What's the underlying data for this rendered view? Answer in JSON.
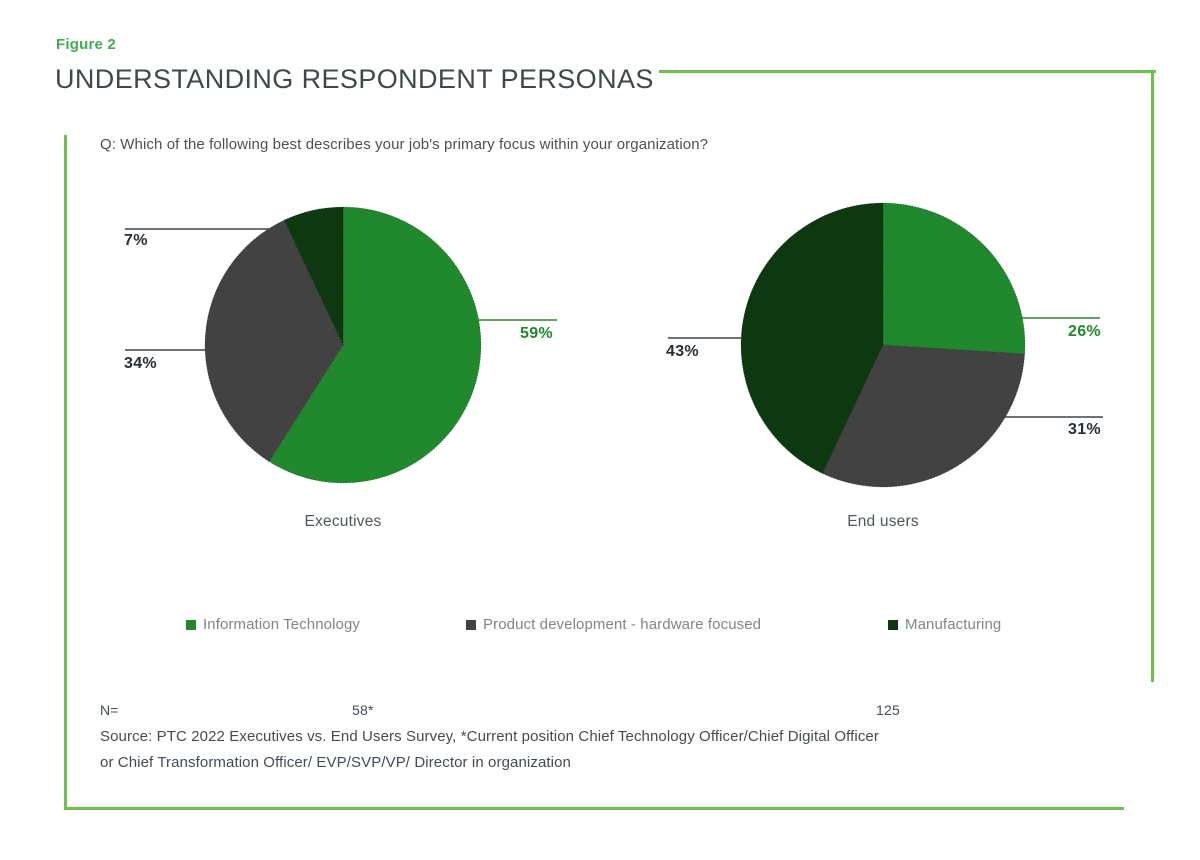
{
  "figure_label": "Figure 2",
  "title": "UNDERSTANDING RESPONDENT PERSONAS",
  "question": "Q: Which of the following best describes your job's primary focus within your organization?",
  "colors": {
    "border_green": "#6cc24a",
    "figure_label_green": "#41ae47",
    "pie_green": "#21892d",
    "pie_gray": "#424242",
    "pie_dark_green": "#0e3810",
    "dark_label": "#233039",
    "callout_dark": "#37474f"
  },
  "legend": [
    {
      "label": "Information Technology",
      "color": "#21892d"
    },
    {
      "label": "Product development - hardware focused",
      "color": "#424242"
    },
    {
      "label": "Manufacturing",
      "color": "#0e3810"
    }
  ],
  "chart_data": [
    {
      "type": "pie",
      "title": "Executives",
      "n": "58*",
      "legend_position": "bottom",
      "series": [
        {
          "name": "Information Technology",
          "value": 59,
          "label": "59%"
        },
        {
          "name": "Product development - hardware focused",
          "value": 34,
          "label": "34%"
        },
        {
          "name": "Manufacturing",
          "value": 7,
          "label": "7%"
        }
      ]
    },
    {
      "type": "pie",
      "title": "End users",
      "n": "125",
      "legend_position": "bottom",
      "series": [
        {
          "name": "Information Technology",
          "value": 26,
          "label": "26%"
        },
        {
          "name": "Product development - hardware focused",
          "value": 31,
          "label": "31%"
        },
        {
          "name": "Manufacturing",
          "value": 43,
          "label": "43%"
        }
      ]
    }
  ],
  "footer": {
    "n_prefix": "N=",
    "source_line1": "Source: PTC 2022 Executives vs. End Users Survey, *Current position Chief Technology Officer/Chief Digital Officer",
    "source_line2": "or Chief Transformation Officer/ EVP/SVP/VP/ Director in organization"
  }
}
